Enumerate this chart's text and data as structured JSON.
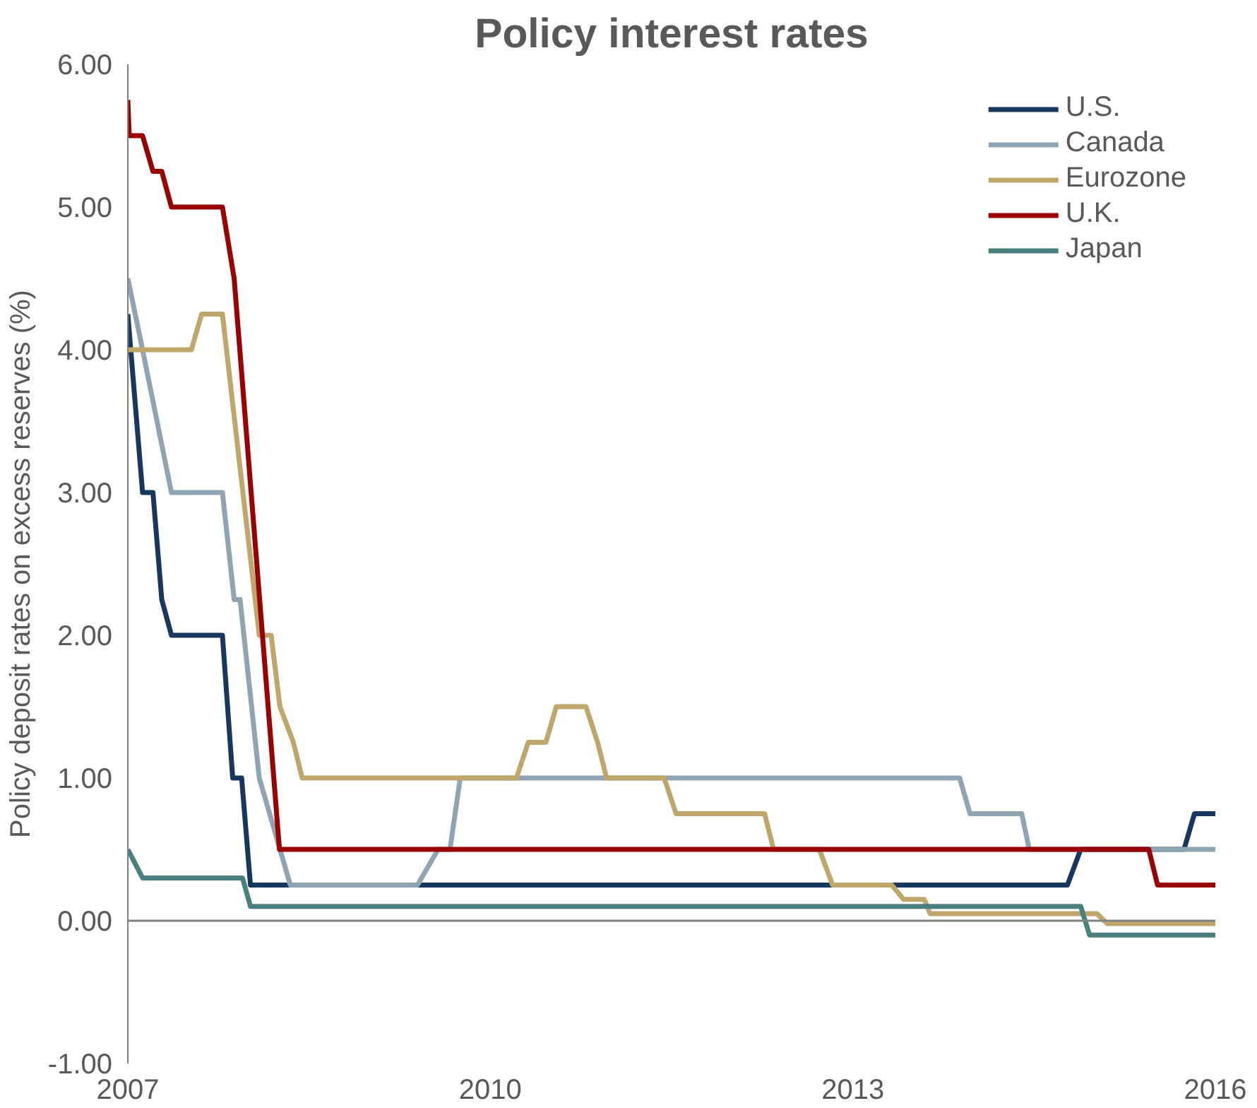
{
  "chart_data": {
    "type": "line",
    "title": "Policy interest rates",
    "ylabel": "Policy deposit rates on excess reserves (%)",
    "xlim": [
      2007,
      2016
    ],
    "xticks": [
      2007,
      2010,
      2013,
      2016
    ],
    "ylim": [
      -1,
      6
    ],
    "yticks": [
      {
        "value": -1,
        "label": "-1.00"
      },
      {
        "value": 0,
        "label": "0.00"
      },
      {
        "value": 1,
        "label": "1.00"
      },
      {
        "value": 2,
        "label": "2.00"
      },
      {
        "value": 3,
        "label": "3.00"
      },
      {
        "value": 4,
        "label": "4.00"
      },
      {
        "value": 5,
        "label": "5.00"
      },
      {
        "value": 6,
        "label": "6.00"
      }
    ],
    "grid": false,
    "legend": "top right",
    "marker": "none",
    "line_style": "solid",
    "ref_lines": [
      {
        "axis": "y",
        "value": 0,
        "color": "#808080"
      }
    ],
    "series": [
      {
        "name": "U.S.",
        "color": "#17375e",
        "x": [
          2007,
          2007.122,
          2007.208,
          2007.281,
          2007.361,
          2007.783,
          2007.868,
          2007.942,
          2008.015,
          2014.776,
          2014.886,
          2015.741,
          2015.827,
          2016
        ],
        "values": [
          4.25,
          3.0,
          3.0,
          2.25,
          2.0,
          2.0,
          1.0,
          1.0,
          0.25,
          0.25,
          0.5,
          0.5,
          0.75,
          0.75
        ]
      },
      {
        "name": "Canada",
        "color": "#8ea4b3",
        "x": [
          2007,
          2007.122,
          2007.361,
          2007.783,
          2007.88,
          2007.929,
          2008.088,
          2008.345,
          2009.397,
          2009.568,
          2009.666,
          2009.751,
          2013.884,
          2013.97,
          2014.398,
          2014.46,
          2016
        ],
        "values": [
          4.5,
          4.0,
          3.0,
          3.0,
          2.25,
          2.25,
          1.0,
          0.25,
          0.25,
          0.5,
          0.5,
          1.0,
          1.0,
          0.75,
          0.75,
          0.5,
          0.5
        ]
      },
      {
        "name": "Eurozone",
        "color": "#bfa66a",
        "x": [
          2007,
          2007.526,
          2007.611,
          2007.783,
          2008.088,
          2008.186,
          2008.259,
          2008.37,
          2008.443,
          2010.216,
          2010.314,
          2010.46,
          2010.546,
          2010.791,
          2010.888,
          2010.962,
          2011.439,
          2011.537,
          2012.27,
          2012.344,
          2012.723,
          2012.833,
          2013.322,
          2013.42,
          2013.591,
          2013.64,
          2015.02,
          2015.106,
          2016
        ],
        "values": [
          4.0,
          4.0,
          4.25,
          4.25,
          2.0,
          2.0,
          1.5,
          1.25,
          1.0,
          1.0,
          1.25,
          1.25,
          1.5,
          1.5,
          1.25,
          1.0,
          1.0,
          0.75,
          0.75,
          0.5,
          0.5,
          0.25,
          0.25,
          0.15,
          0.15,
          0.05,
          0.05,
          -0.02,
          -0.02
        ]
      },
      {
        "name": "U.K.",
        "color": "#9b0000",
        "x": [
          2007,
          2007.012,
          2007.122,
          2007.208,
          2007.281,
          2007.361,
          2007.783,
          2007.88,
          2008.255,
          2015.449,
          2015.522,
          2016
        ],
        "values": [
          5.75,
          5.5,
          5.5,
          5.25,
          5.25,
          5.0,
          5.0,
          4.5,
          0.5,
          0.5,
          0.25,
          0.25
        ]
      },
      {
        "name": "Japan",
        "color": "#4a7f7f",
        "x": [
          2007,
          2007.122,
          2007.949,
          2008.015,
          2014.886,
          2014.959,
          2016
        ],
        "values": [
          0.5,
          0.3,
          0.3,
          0.1,
          0.1,
          -0.1,
          -0.1
        ]
      }
    ]
  }
}
